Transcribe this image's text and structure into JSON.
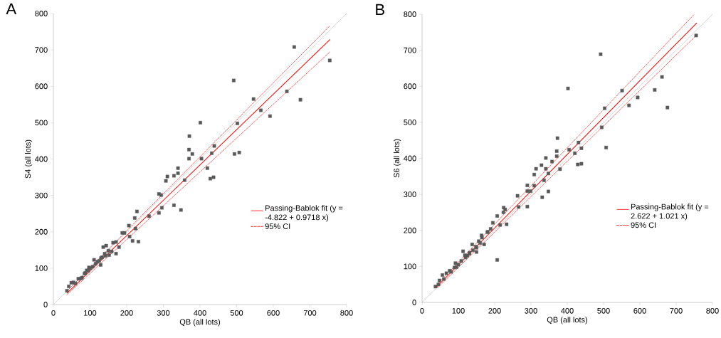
{
  "chart_data": [
    {
      "type": "scatter",
      "title": "A",
      "xlabel": "QB (all lots)",
      "ylabel": "S4 (all lots)",
      "xlim": [
        0,
        800
      ],
      "ylim": [
        0,
        800
      ],
      "xticks": [
        0,
        100,
        200,
        300,
        400,
        500,
        600,
        700,
        800
      ],
      "yticks": [
        0,
        100,
        200,
        300,
        400,
        500,
        600,
        700,
        800
      ],
      "legend": "right",
      "series": [
        {
          "type": "line",
          "color": "#bfbfbf",
          "line_style": "solid",
          "marker": "none",
          "x": [
            0,
            800
          ],
          "values": [
            0,
            800
          ]
        },
        {
          "type": "scatter",
          "color": "#595959",
          "marker": "square",
          "x": [
            657,
            754,
            492,
            637,
            674,
            546,
            566,
            591,
            401,
            502,
            371,
            370,
            379,
            439,
            432,
            370,
            404,
            494,
            507,
            340,
            420,
            311,
            329,
            307,
            358,
            428,
            437,
            340,
            288,
            294,
            329,
            348,
            296,
            288,
            228,
            222,
            261,
            206,
            224,
            216,
            232,
            208,
            194,
            188,
            179,
            171,
            171,
            163,
            144,
            136,
            159,
            152,
            142,
            133,
            125,
            129,
            111,
            107,
            97,
            91,
            87,
            78,
            68,
            55,
            49,
            42,
            37,
            60,
            85,
            100,
            115,
            140,
            150,
            120,
            75,
            95,
            130
          ],
          "values": [
            708,
            671,
            616,
            586,
            563,
            565,
            534,
            518,
            500,
            498,
            463,
            426,
            414,
            436,
            416,
            401,
            401,
            414,
            418,
            375,
            375,
            352,
            354,
            340,
            342,
            346,
            350,
            361,
            304,
            301,
            273,
            260,
            266,
            252,
            256,
            238,
            243,
            217,
            209,
            175,
            173,
            187,
            197,
            197,
            158,
            140,
            172,
            170,
            162,
            158,
            146,
            136,
            134,
            130,
            120,
            109,
            123,
            104,
            102,
            94,
            87,
            74,
            71,
            61,
            60,
            50,
            38,
            58,
            85,
            100,
            112,
            140,
            148,
            118,
            72,
            93,
            128
          ]
        },
        {
          "type": "line",
          "name": "Passing-Bablok fit (y = -4.822 + 0.9718 x)",
          "color": "#ff0000",
          "line_style": "solid",
          "marker": "none",
          "x": [
            37,
            755
          ],
          "values": [
            31,
            729
          ]
        },
        {
          "type": "line",
          "name": "95% CI",
          "color": "#ff0000",
          "line_style": "dashed",
          "marker": "none",
          "x": [
            37,
            755
          ],
          "values": [
            37,
            767
          ]
        },
        {
          "type": "line",
          "color": "#ff0000",
          "line_style": "dashed",
          "marker": "none",
          "x": [
            37,
            755
          ],
          "values": [
            27,
            695
          ]
        }
      ]
    },
    {
      "type": "scatter",
      "title": "B",
      "xlabel": "QB (all lots)",
      "ylabel": "S6 (all lots)",
      "xlim": [
        0,
        800
      ],
      "ylim": [
        0,
        800
      ],
      "xticks": [
        0,
        100,
        200,
        300,
        400,
        500,
        600,
        700,
        800
      ],
      "yticks": [
        0,
        100,
        200,
        300,
        400,
        500,
        600,
        700,
        800
      ],
      "legend": "right",
      "series": [
        {
          "type": "line",
          "color": "#bfbfbf",
          "line_style": "solid",
          "marker": "none",
          "x": [
            0,
            800
          ],
          "values": [
            0,
            800
          ]
        },
        {
          "type": "scatter",
          "color": "#595959",
          "marker": "square",
          "x": [
            492,
            402,
            755,
            661,
            551,
            641,
            594,
            570,
            676,
            503,
            495,
            507,
            373,
            431,
            439,
            405,
            371,
            421,
            371,
            341,
            358,
            429,
            439,
            329,
            314,
            341,
            380,
            309,
            348,
            336,
            309,
            290,
            299,
            290,
            348,
            331,
            263,
            266,
            290,
            225,
            229,
            224,
            233,
            215,
            207,
            195,
            207,
            189,
            181,
            164,
            171,
            156,
            148,
            138,
            131,
            113,
            118,
            108,
            92,
            89,
            76,
            67,
            56,
            48,
            37,
            45,
            60,
            80,
            100,
            120,
            140,
            150,
            160,
            125,
            95,
            130,
            150,
            165,
            180
          ],
          "values": [
            689,
            594,
            741,
            626,
            588,
            590,
            569,
            547,
            541,
            539,
            486,
            430,
            456,
            444,
            428,
            424,
            420,
            414,
            406,
            401,
            391,
            383,
            385,
            381,
            371,
            371,
            370,
            355,
            358,
            339,
            324,
            325,
            309,
            309,
            308,
            292,
            296,
            265,
            266,
            263,
            258,
            250,
            217,
            215,
            240,
            221,
            118,
            204,
            196,
            186,
            161,
            170,
            155,
            161,
            138,
            142,
            131,
            115,
            109,
            97,
            88,
            81,
            76,
            61,
            44,
            50,
            65,
            85,
            105,
            125,
            145,
            152,
            165,
            130,
            98,
            135,
            140,
            180,
            195
          ]
        },
        {
          "type": "line",
          "name": "Passing-Bablok fit (y = 2.622 + 1.021 x)",
          "color": "#ff0000",
          "line_style": "solid",
          "marker": "none",
          "x": [
            37,
            757
          ],
          "values": [
            40,
            776
          ]
        },
        {
          "type": "line",
          "name": "95% CI",
          "color": "#ff0000",
          "line_style": "dashed",
          "marker": "none",
          "x": [
            37,
            750
          ],
          "values": [
            45,
            800
          ]
        },
        {
          "type": "line",
          "color": "#ff0000",
          "line_style": "dashed",
          "marker": "none",
          "x": [
            42,
            755
          ],
          "values": [
            40,
            741
          ]
        }
      ]
    }
  ]
}
